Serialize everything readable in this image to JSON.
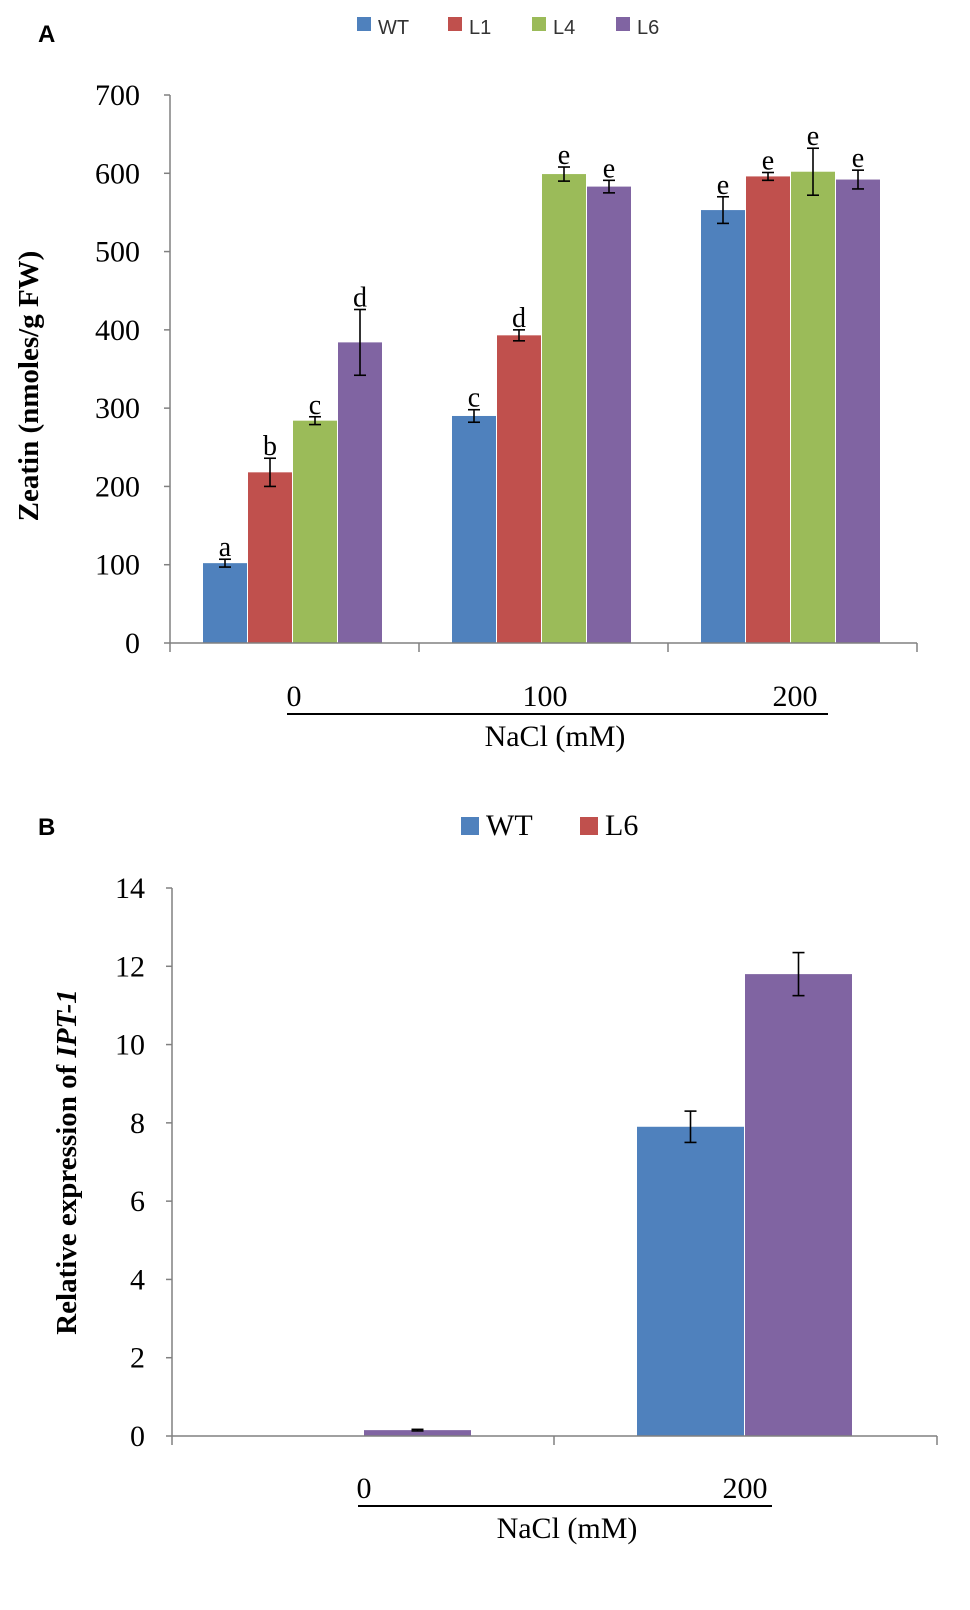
{
  "colors": {
    "WT": "#4f81bd",
    "L1": "#c0504d",
    "L4": "#9bbb59",
    "L6": "#8064a2",
    "axis": "#808080",
    "errorbar": "#000000"
  },
  "chart_data": [
    {
      "panel_label": "A",
      "type": "bar",
      "title": "",
      "xlabel": "NaCl (mM)",
      "ylabel": "Zeatin (nmoles/g FW)",
      "ylim": [
        0,
        700
      ],
      "yticks": [
        "0",
        "100",
        "200",
        "300",
        "400",
        "500",
        "600",
        "700"
      ],
      "categories": [
        "0",
        "100",
        "200"
      ],
      "legend": [
        "WT",
        "L1",
        "L4",
        "L6"
      ],
      "series": [
        {
          "name": "WT",
          "values": [
            102,
            290,
            553
          ],
          "errors": [
            5,
            8,
            17
          ],
          "letters": [
            "a",
            "c",
            "e"
          ]
        },
        {
          "name": "L1",
          "values": [
            218,
            393,
            596
          ],
          "errors": [
            18,
            7,
            5
          ],
          "letters": [
            "b",
            "d",
            "e"
          ]
        },
        {
          "name": "L4",
          "values": [
            284,
            599,
            602
          ],
          "errors": [
            5,
            9,
            30
          ],
          "letters": [
            "c",
            "e",
            "e"
          ]
        },
        {
          "name": "L6",
          "values": [
            384,
            583,
            592
          ],
          "errors": [
            42,
            8,
            12
          ],
          "letters": [
            "d",
            "e",
            "e"
          ]
        }
      ]
    },
    {
      "panel_label": "B",
      "type": "bar",
      "title": "",
      "xlabel": "NaCl (mM)",
      "ylabel_prefix": "Relative expression of ",
      "ylabel_gene": "IPT-1",
      "ylim": [
        0,
        14
      ],
      "yticks": [
        "0",
        "2",
        "4",
        "6",
        "8",
        "10",
        "12",
        "14"
      ],
      "categories": [
        "0",
        "200"
      ],
      "legend": [
        "WT",
        "L6"
      ],
      "series": [
        {
          "name": "WT",
          "values": [
            0,
            7.9
          ],
          "errors": [
            0,
            0.4
          ]
        },
        {
          "name": "L6",
          "values": [
            0.15,
            11.8
          ],
          "errors": [
            0.02,
            0.55
          ]
        }
      ]
    }
  ]
}
